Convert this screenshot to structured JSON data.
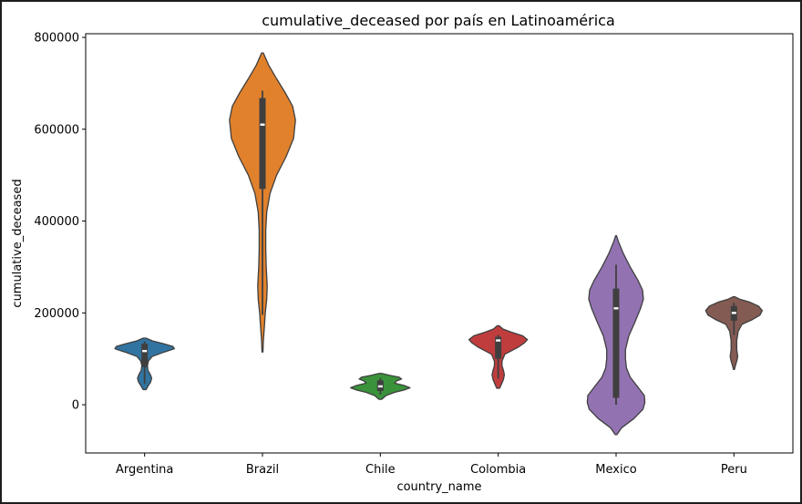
{
  "chart_data": {
    "type": "violin",
    "title": "cumulative_deceased por país en Latinoamérica",
    "xlabel": "country_name",
    "ylabel": "cumulative_deceased",
    "ylim": [
      -105000,
      808000
    ],
    "yticks": [
      0,
      200000,
      400000,
      600000,
      800000
    ],
    "ytick_labels": [
      "0",
      "200000",
      "400000",
      "600000",
      "800000"
    ],
    "grid": false,
    "categories": [
      "Argentina",
      "Brazil",
      "Chile",
      "Colombia",
      "Mexico",
      "Peru"
    ],
    "colors": [
      "#3274a1",
      "#e1812c",
      "#3a923a",
      "#c03d3e",
      "#9372b2",
      "#845b53"
    ],
    "series": [
      {
        "category": "Argentina",
        "box": {
          "q1": 82000,
          "median": 117000,
          "q3": 133000,
          "whisker_low": 45000,
          "whisker_high": 138000
        },
        "density": [
          [
            33000,
            0.03
          ],
          [
            40000,
            0.07
          ],
          [
            50000,
            0.13
          ],
          [
            58000,
            0.15
          ],
          [
            66000,
            0.12
          ],
          [
            75000,
            0.07
          ],
          [
            85000,
            0.06
          ],
          [
            95000,
            0.08
          ],
          [
            105000,
            0.16
          ],
          [
            115000,
            0.42
          ],
          [
            122000,
            0.63
          ],
          [
            127000,
            0.6
          ],
          [
            133000,
            0.4
          ],
          [
            139000,
            0.17
          ],
          [
            145000,
            0.03
          ]
        ]
      },
      {
        "category": "Brazil",
        "box": {
          "q1": 470000,
          "median": 610000,
          "q3": 668000,
          "whisker_low": 196000,
          "whisker_high": 684000
        },
        "density": [
          [
            115000,
            0.01
          ],
          [
            140000,
            0.02
          ],
          [
            170000,
            0.04
          ],
          [
            200000,
            0.06
          ],
          [
            230000,
            0.09
          ],
          [
            260000,
            0.1
          ],
          [
            300000,
            0.08
          ],
          [
            340000,
            0.07
          ],
          [
            380000,
            0.07
          ],
          [
            420000,
            0.09
          ],
          [
            460000,
            0.16
          ],
          [
            500000,
            0.3
          ],
          [
            540000,
            0.5
          ],
          [
            580000,
            0.66
          ],
          [
            620000,
            0.7
          ],
          [
            650000,
            0.64
          ],
          [
            680000,
            0.48
          ],
          [
            710000,
            0.3
          ],
          [
            740000,
            0.13
          ],
          [
            766000,
            0.02
          ]
        ]
      },
      {
        "category": "Chile",
        "box": {
          "q1": 30000,
          "median": 40000,
          "q3": 53000,
          "whisker_low": 22000,
          "whisker_high": 58000
        },
        "density": [
          [
            12000,
            0.03
          ],
          [
            20000,
            0.12
          ],
          [
            27000,
            0.3
          ],
          [
            32000,
            0.5
          ],
          [
            37000,
            0.63
          ],
          [
            42000,
            0.5
          ],
          [
            47000,
            0.3
          ],
          [
            52000,
            0.35
          ],
          [
            56000,
            0.45
          ],
          [
            60000,
            0.4
          ],
          [
            64000,
            0.2
          ],
          [
            68000,
            0.03
          ]
        ]
      },
      {
        "category": "Colombia",
        "box": {
          "q1": 100000,
          "median": 140000,
          "q3": 148000,
          "whisker_low": 57000,
          "whisker_high": 152000
        },
        "density": [
          [
            36000,
            0.03
          ],
          [
            45000,
            0.07
          ],
          [
            55000,
            0.11
          ],
          [
            65000,
            0.13
          ],
          [
            75000,
            0.11
          ],
          [
            85000,
            0.08
          ],
          [
            95000,
            0.08
          ],
          [
            110000,
            0.14
          ],
          [
            125000,
            0.42
          ],
          [
            135000,
            0.56
          ],
          [
            142000,
            0.62
          ],
          [
            150000,
            0.52
          ],
          [
            158000,
            0.28
          ],
          [
            165000,
            0.1
          ],
          [
            172000,
            0.02
          ]
        ]
      },
      {
        "category": "Mexico",
        "box": {
          "q1": 15000,
          "median": 210000,
          "q3": 253000,
          "whisker_low": 0,
          "whisker_high": 305000
        },
        "density": [
          [
            -65000,
            0.02
          ],
          [
            -50000,
            0.12
          ],
          [
            -30000,
            0.38
          ],
          [
            -10000,
            0.57
          ],
          [
            5000,
            0.61
          ],
          [
            20000,
            0.6
          ],
          [
            40000,
            0.45
          ],
          [
            60000,
            0.3
          ],
          [
            80000,
            0.22
          ],
          [
            100000,
            0.2
          ],
          [
            120000,
            0.2
          ],
          [
            150000,
            0.27
          ],
          [
            180000,
            0.4
          ],
          [
            210000,
            0.52
          ],
          [
            230000,
            0.58
          ],
          [
            250000,
            0.56
          ],
          [
            270000,
            0.47
          ],
          [
            300000,
            0.3
          ],
          [
            330000,
            0.15
          ],
          [
            355000,
            0.05
          ],
          [
            368000,
            0.01
          ]
        ]
      },
      {
        "category": "Peru",
        "box": {
          "q1": 183000,
          "median": 200000,
          "q3": 215000,
          "whisker_low": 152000,
          "whisker_high": 222000
        },
        "density": [
          [
            77000,
            0.01
          ],
          [
            85000,
            0.03
          ],
          [
            95000,
            0.06
          ],
          [
            105000,
            0.08
          ],
          [
            120000,
            0.06
          ],
          [
            140000,
            0.06
          ],
          [
            160000,
            0.09
          ],
          [
            175000,
            0.17
          ],
          [
            185000,
            0.38
          ],
          [
            195000,
            0.55
          ],
          [
            205000,
            0.6
          ],
          [
            215000,
            0.52
          ],
          [
            224000,
            0.32
          ],
          [
            230000,
            0.12
          ],
          [
            235000,
            0.02
          ]
        ]
      }
    ]
  }
}
